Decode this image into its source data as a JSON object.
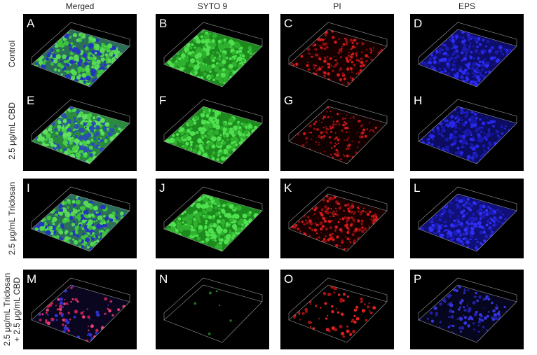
{
  "columns": [
    "Merged",
    "SYTO 9",
    "PI",
    "EPS"
  ],
  "rows": [
    {
      "label": [
        "Control"
      ],
      "panels": [
        "A",
        "B",
        "C",
        "D"
      ]
    },
    {
      "label": [
        "2.5 μg/mL CBD"
      ],
      "panels": [
        "E",
        "F",
        "G",
        "H"
      ]
    },
    {
      "label": [
        "2.5 μg/mL Triclosan"
      ],
      "panels": [
        "I",
        "J",
        "K",
        "L"
      ]
    },
    {
      "label": [
        "2.5 μg/mL Triclosan",
        "+ 2.5 μg/mL CBD"
      ],
      "panels": [
        "M",
        "N",
        "O",
        "P"
      ]
    }
  ]
}
